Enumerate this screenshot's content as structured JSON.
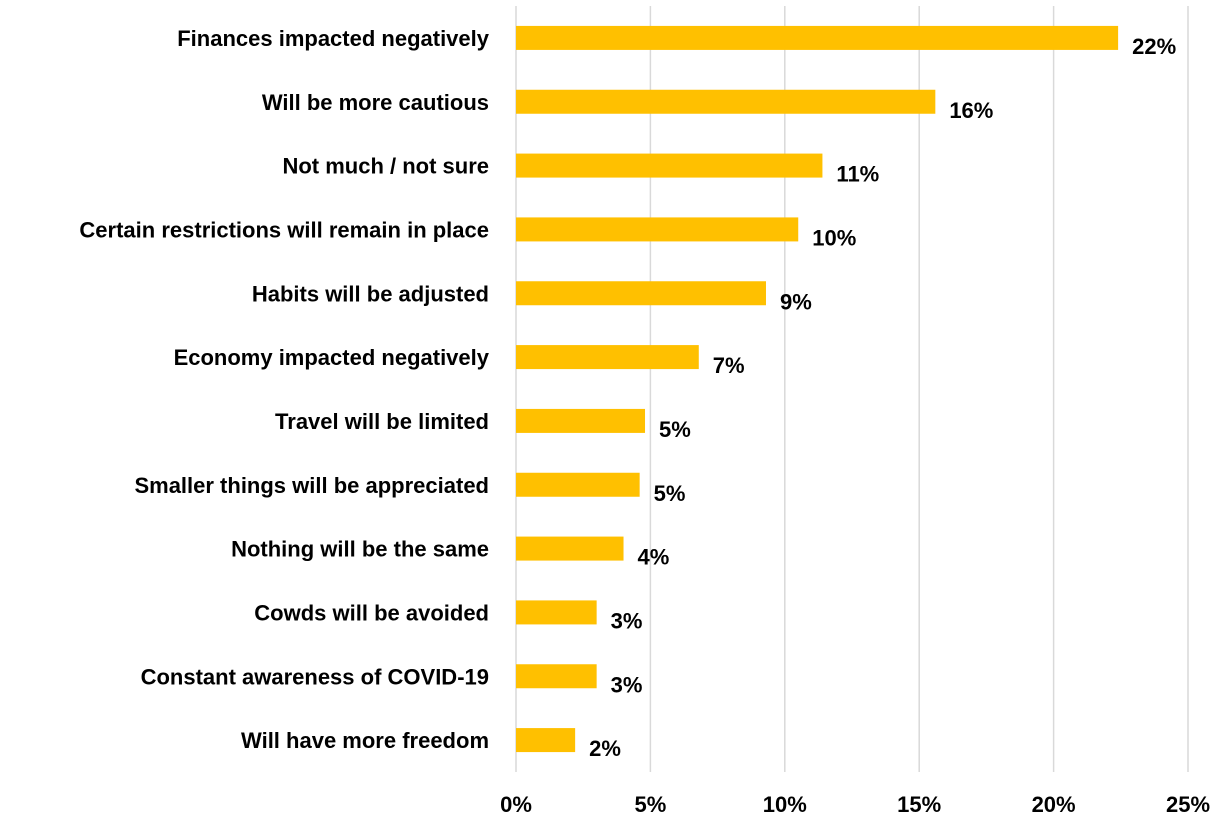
{
  "chart_data": {
    "type": "bar",
    "orientation": "horizontal",
    "title": "",
    "xlabel": "",
    "ylabel": "",
    "categories": [
      "Finances impacted negatively",
      "Will be more cautious",
      "Not much / not sure",
      "Certain restrictions will remain in place",
      "Habits will be adjusted",
      "Economy impacted negatively",
      "Travel will be limited",
      "Smaller things will be appreciated",
      "Nothing will be the same",
      "Cowds will be avoided",
      "Constant awareness of COVID-19",
      "Will have more freedom"
    ],
    "values": [
      22.4,
      15.6,
      11.4,
      10.5,
      9.3,
      6.8,
      4.8,
      4.6,
      4.0,
      3.0,
      3.0,
      2.2
    ],
    "value_labels": [
      "22%",
      "16%",
      "11%",
      "10%",
      "9%",
      "7%",
      "5%",
      "5%",
      "4%",
      "3%",
      "3%",
      "2%"
    ],
    "x_ticks": [
      0,
      5,
      10,
      15,
      20,
      25
    ],
    "x_tick_labels": [
      "0%",
      "5%",
      "10%",
      "15%",
      "20%",
      "25%"
    ],
    "xlim": [
      0,
      25
    ],
    "grid": "vertical",
    "legend": "none",
    "bar_color": "#FFC000"
  }
}
